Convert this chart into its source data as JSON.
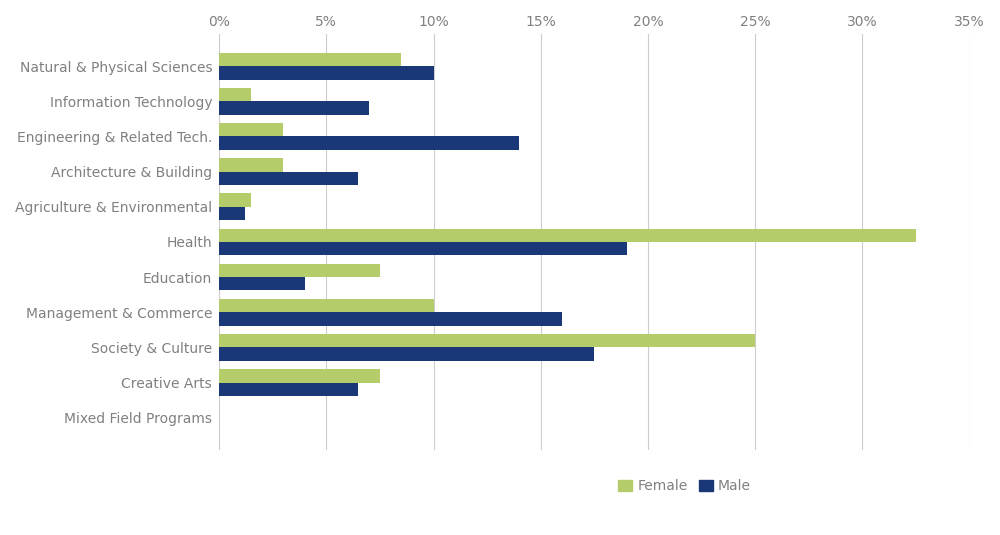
{
  "categories": [
    "Natural & Physical Sciences",
    "Information Technology",
    "Engineering & Related Tech.",
    "Architecture & Building",
    "Agriculture & Environmental",
    "Health",
    "Education",
    "Management & Commerce",
    "Society & Culture",
    "Creative Arts",
    "Mixed Field Programs"
  ],
  "female": [
    8.5,
    1.5,
    3.0,
    3.0,
    1.5,
    32.5,
    7.5,
    10.0,
    25.0,
    7.5,
    0.0
  ],
  "male": [
    10.0,
    7.0,
    14.0,
    6.5,
    1.2,
    19.0,
    4.0,
    16.0,
    17.5,
    6.5,
    0.0
  ],
  "female_color": "#b5cc6a",
  "male_color": "#1a3878",
  "background_color": "#ffffff",
  "grid_color": "#cccccc",
  "tick_label_color": "#808080",
  "bar_height": 0.38,
  "xlim": [
    0,
    35
  ],
  "xticks": [
    0,
    5,
    10,
    15,
    20,
    25,
    30,
    35
  ],
  "legend_female": "Female",
  "legend_male": "Male",
  "label_fontsize": 10,
  "tick_fontsize": 10
}
